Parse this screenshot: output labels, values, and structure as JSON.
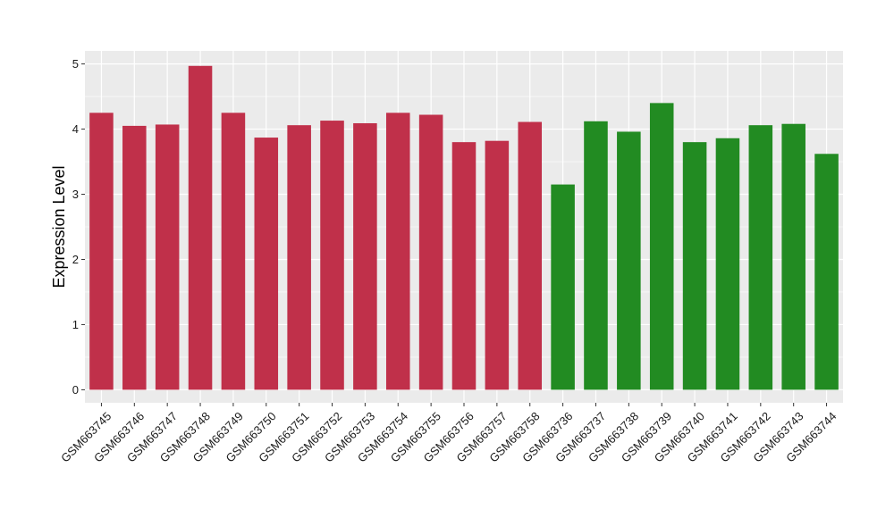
{
  "chart_data": {
    "type": "bar",
    "title": "",
    "xlabel": "",
    "ylabel": "Expression Level",
    "ylim": [
      -0.2,
      5.2
    ],
    "yticks": [
      0,
      1,
      2,
      3,
      4,
      5
    ],
    "grid": true,
    "legend": "none",
    "categories": [
      "GSM663745",
      "GSM663746",
      "GSM663747",
      "GSM663748",
      "GSM663749",
      "GSM663750",
      "GSM663751",
      "GSM663752",
      "GSM663753",
      "GSM663754",
      "GSM663755",
      "GSM663756",
      "GSM663757",
      "GSM663758",
      "GSM663736",
      "GSM663737",
      "GSM663738",
      "GSM663739",
      "GSM663740",
      "GSM663741",
      "GSM663742",
      "GSM663743",
      "GSM663744"
    ],
    "values": [
      4.25,
      4.05,
      4.07,
      4.97,
      4.25,
      3.87,
      4.06,
      4.13,
      4.09,
      4.25,
      4.22,
      3.8,
      3.82,
      4.11,
      3.15,
      4.12,
      3.96,
      4.4,
      3.8,
      3.86,
      4.06,
      4.08,
      3.62
    ],
    "groups": [
      {
        "color": "#c0304a",
        "count": 14
      },
      {
        "color": "#228b22",
        "count": 9
      }
    ],
    "panel_background": "#ebebeb",
    "grid_color": "#ffffff"
  }
}
